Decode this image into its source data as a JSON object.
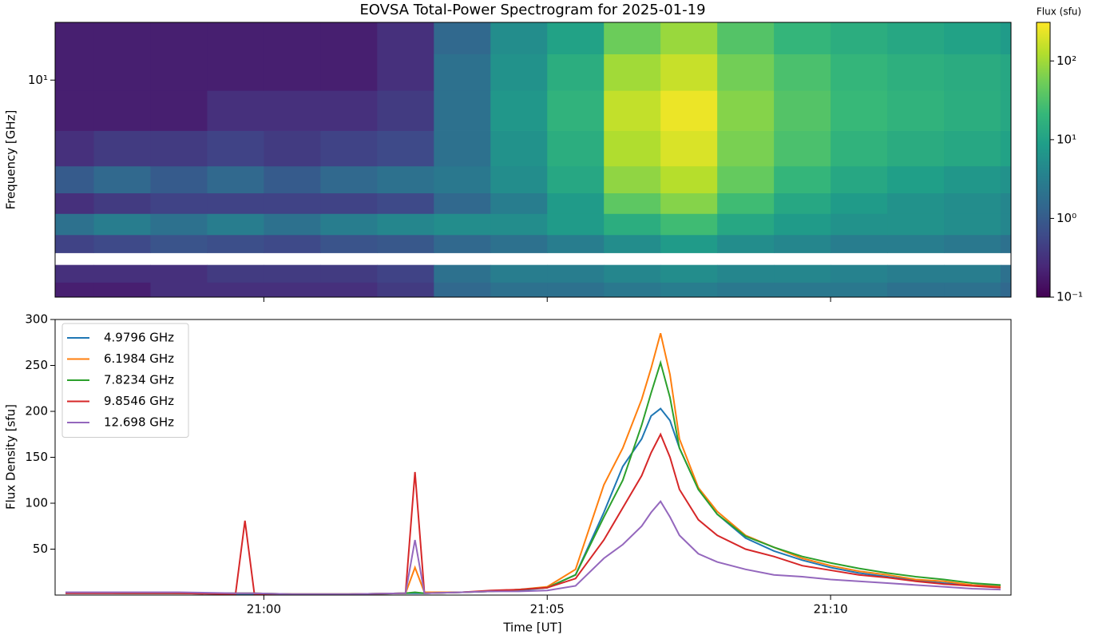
{
  "chart_data": [
    {
      "type": "heatmap",
      "title": "EOVSA Total-Power Spectrogram for 2025-01-19",
      "ylabel": "Frequency [GHz]",
      "yscale": "log",
      "xlim": [
        "20:56:19",
        "21:13:11"
      ],
      "ylim": [
        1.12,
        17.9
      ],
      "yticks": [
        {
          "value": 10,
          "label": "10¹"
        }
      ],
      "x_bins": [
        "20:56:19",
        "20:57:00",
        "20:58:00",
        "20:59:00",
        "21:00:00",
        "21:01:00",
        "21:02:00",
        "21:03:00",
        "21:04:00",
        "21:05:00",
        "21:06:00",
        "21:07:00",
        "21:08:00",
        "21:09:00",
        "21:10:00",
        "21:11:00",
        "21:12:00",
        "21:13:00",
        "21:13:11"
      ],
      "y_bins": [
        1.12,
        1.3,
        1.55,
        1.75,
        2.1,
        2.6,
        3.2,
        4.2,
        6,
        9,
        13,
        17.9
      ],
      "z": [
        [
          0.2,
          0.2,
          0.3,
          0.3,
          0.3,
          0.3,
          0.4,
          1.5,
          2,
          2,
          2.5,
          3,
          2.5,
          2.5,
          2.5,
          2,
          2,
          1.5
        ],
        [
          0.3,
          0.3,
          0.3,
          0.4,
          0.4,
          0.4,
          0.5,
          2,
          3,
          3,
          4,
          5,
          4,
          4,
          3.5,
          3,
          3,
          2
        ],
        [
          null,
          null,
          null,
          null,
          null,
          null,
          null,
          null,
          null,
          null,
          null,
          null,
          null,
          null,
          null,
          null,
          null,
          null
        ],
        [
          0.5,
          0.6,
          0.8,
          0.7,
          0.6,
          0.8,
          0.9,
          1.5,
          2,
          3,
          5,
          8,
          5,
          4,
          3,
          3,
          2.5,
          2
        ],
        [
          2,
          3,
          2,
          3,
          2,
          3,
          4,
          5,
          5,
          8,
          15,
          25,
          12,
          8,
          6,
          6,
          5,
          4
        ],
        [
          0.3,
          0.4,
          0.5,
          0.5,
          0.5,
          0.5,
          0.6,
          1.5,
          3,
          8,
          40,
          70,
          25,
          12,
          8,
          6,
          5,
          4
        ],
        [
          1,
          1.5,
          1,
          1.5,
          1,
          1.5,
          2,
          2.5,
          5,
          12,
          80,
          130,
          45,
          20,
          12,
          9,
          7,
          6
        ],
        [
          0.3,
          0.4,
          0.4,
          0.5,
          0.4,
          0.5,
          0.6,
          2,
          6,
          15,
          120,
          200,
          60,
          30,
          18,
          14,
          12,
          10
        ],
        [
          0.2,
          0.2,
          0.2,
          0.3,
          0.3,
          0.3,
          0.4,
          2,
          7,
          18,
          150,
          250,
          70,
          35,
          22,
          18,
          15,
          12
        ],
        [
          0.2,
          0.2,
          0.2,
          0.2,
          0.2,
          0.2,
          0.3,
          2,
          6,
          15,
          100,
          160,
          55,
          30,
          20,
          16,
          14,
          12
        ],
        [
          0.2,
          0.2,
          0.2,
          0.2,
          0.2,
          0.2,
          0.3,
          1.5,
          5,
          10,
          50,
          90,
          35,
          20,
          15,
          12,
          10,
          8
        ]
      ],
      "colorbar": {
        "label": "Flux (sfu)",
        "scale": "log",
        "colormap": "viridis",
        "lim": [
          0.1,
          309
        ],
        "ticks": [
          {
            "value": 0.1,
            "label": "10⁻¹"
          },
          {
            "value": 1,
            "label": "10⁰"
          },
          {
            "value": 10,
            "label": "10¹"
          },
          {
            "value": 100,
            "label": "10²"
          }
        ]
      }
    },
    {
      "type": "line",
      "xlabel": "Time [UT]",
      "ylabel": "Flux Density [sfu]",
      "legend": "upper left",
      "xlim": [
        "20:56:19",
        "21:13:11"
      ],
      "xticks": [
        "21:00",
        "21:05",
        "21:10"
      ],
      "ylim": [
        0,
        300
      ],
      "yticks": [
        50,
        100,
        150,
        200,
        250,
        300
      ],
      "x": [
        "20:56:30",
        "20:57:30",
        "20:58:30",
        "20:59:30",
        "20:59:40",
        "20:59:50",
        "21:00:30",
        "21:01:30",
        "21:02:30",
        "21:02:40",
        "21:02:50",
        "21:03:30",
        "21:04:00",
        "21:04:30",
        "21:05:00",
        "21:05:30",
        "21:06:00",
        "21:06:20",
        "21:06:40",
        "21:06:50",
        "21:07:00",
        "21:07:10",
        "21:07:20",
        "21:07:40",
        "21:08:00",
        "21:08:30",
        "21:09:00",
        "21:09:30",
        "21:10:00",
        "21:10:30",
        "21:11:00",
        "21:11:30",
        "21:12:00",
        "21:12:30",
        "21:13:00"
      ],
      "series": [
        {
          "name": "4.9796 GHz",
          "color": "#1f77b4",
          "values": [
            2,
            2,
            2,
            1,
            1,
            1,
            1,
            1,
            2,
            2,
            2,
            3,
            4,
            5,
            8,
            22,
            90,
            140,
            170,
            195,
            203,
            190,
            160,
            115,
            88,
            62,
            48,
            38,
            30,
            24,
            20,
            16,
            13,
            11,
            10
          ]
        },
        {
          "name": "6.1984 GHz",
          "color": "#ff7f0e",
          "values": [
            3,
            3,
            2,
            2,
            2,
            2,
            1,
            1,
            2,
            30,
            3,
            3,
            4,
            6,
            9,
            28,
            120,
            160,
            213,
            247,
            285,
            240,
            170,
            117,
            91,
            65,
            52,
            40,
            32,
            26,
            22,
            17,
            15,
            11,
            9
          ]
        },
        {
          "name": "7.8234 GHz",
          "color": "#2ca02c",
          "values": [
            3,
            2,
            2,
            2,
            2,
            2,
            1,
            1,
            2,
            3,
            2,
            3,
            4,
            6,
            8,
            22,
            85,
            125,
            185,
            220,
            253,
            215,
            160,
            115,
            88,
            64,
            52,
            42,
            35,
            29,
            24,
            20,
            17,
            13,
            11
          ]
        },
        {
          "name": "9.8546 GHz",
          "color": "#d62728",
          "values": [
            2,
            2,
            2,
            1,
            81,
            1,
            1,
            1,
            2,
            134,
            2,
            3,
            5,
            6,
            8,
            18,
            60,
            95,
            130,
            155,
            175,
            150,
            115,
            82,
            65,
            50,
            42,
            32,
            27,
            22,
            19,
            15,
            12,
            10,
            8
          ]
        },
        {
          "name": "12.698 GHz",
          "color": "#9467bd",
          "values": [
            3,
            3,
            3,
            2,
            2,
            2,
            1,
            1,
            2,
            60,
            2,
            3,
            4,
            4,
            5,
            10,
            40,
            55,
            75,
            90,
            102,
            85,
            65,
            45,
            36,
            28,
            22,
            20,
            17,
            15,
            13,
            11,
            9,
            7,
            6
          ]
        }
      ]
    }
  ]
}
